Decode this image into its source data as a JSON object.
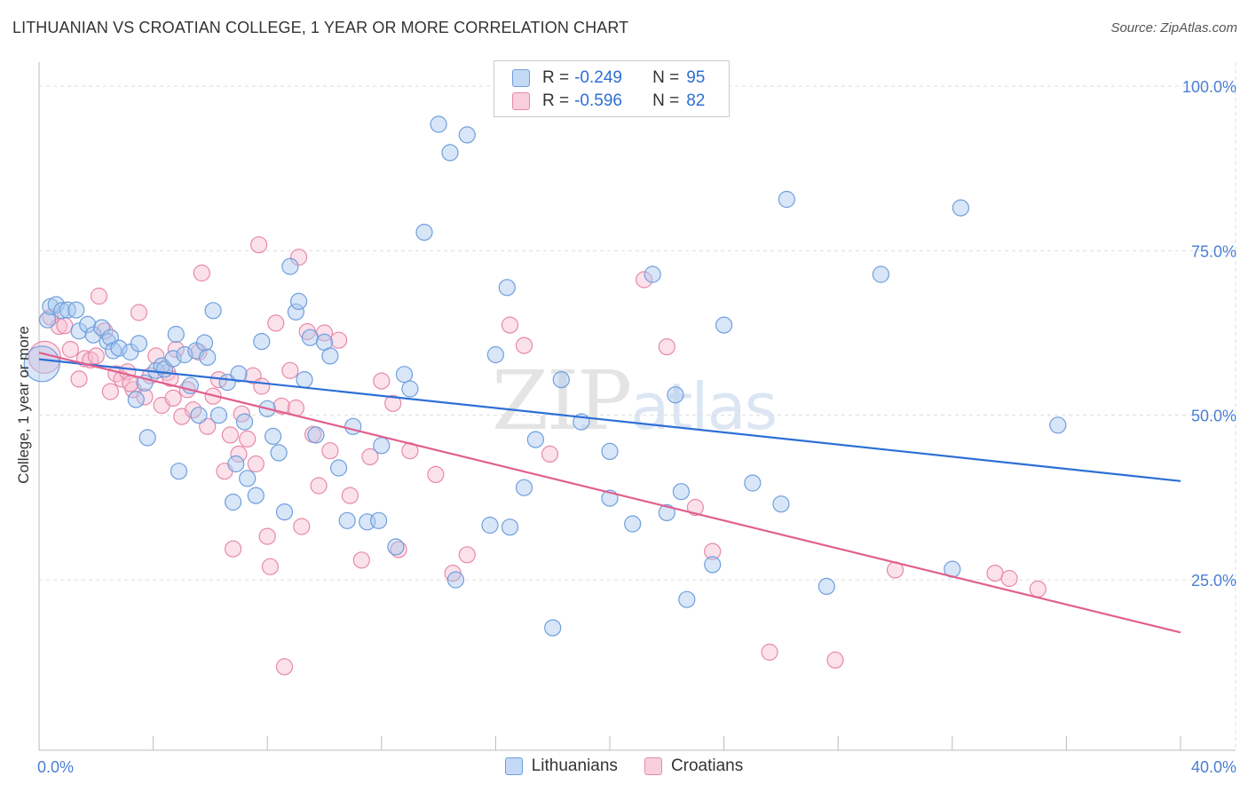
{
  "header": {
    "title": "LITHUANIAN VS CROATIAN COLLEGE, 1 YEAR OR MORE CORRELATION CHART",
    "source": "Source: ZipAtlas.com"
  },
  "watermark": {
    "zip": "ZIP",
    "atlas": "atlas"
  },
  "legend": {
    "rows": [
      {
        "r_label": "R =",
        "r_value": "-0.249",
        "n_label": "N =",
        "n_value": "95"
      },
      {
        "r_label": "R =",
        "r_value": "-0.596",
        "n_label": "N =",
        "n_value": "82"
      }
    ]
  },
  "bottom_legend": {
    "series1": "Lithuanians",
    "series2": "Croatians"
  },
  "colors": {
    "blue_fill": "#a8c8f0",
    "blue_stroke": "#6f9fdc",
    "blue_line": "#2d6fd6",
    "pink_fill": "#f6bcd0",
    "pink_stroke": "#e889aa",
    "pink_line": "#e0608e",
    "grid": "#dddddd"
  },
  "chart_data": {
    "type": "scatter",
    "title": "LITHUANIAN VS CROATIAN COLLEGE, 1 YEAR OR MORE CORRELATION CHART",
    "xlabel": "",
    "ylabel": "College, 1 year or more",
    "xlim": [
      0,
      40
    ],
    "ylim": [
      0,
      105
    ],
    "x_tick_labels": [
      {
        "value": 0,
        "label": "0.0%"
      },
      {
        "value": 40,
        "label": "40.0%"
      }
    ],
    "y_tick_labels": [
      {
        "value": 25,
        "label": "25.0%"
      },
      {
        "value": 50,
        "label": "50.0%"
      },
      {
        "value": 75,
        "label": "75.0%"
      },
      {
        "value": 100,
        "label": "100.0%"
      }
    ],
    "series": [
      {
        "name": "Lithuanians",
        "r": -0.249,
        "n": 95,
        "trend": {
          "x": [
            0,
            40
          ],
          "y": [
            58.5,
            40.0
          ]
        },
        "points": [
          [
            0.1,
            57.8
          ],
          [
            0.3,
            64.5
          ],
          [
            0.4,
            66.5
          ],
          [
            0.6,
            66.8
          ],
          [
            0.8,
            65.9
          ],
          [
            1.0,
            66.0
          ],
          [
            1.3,
            66.0
          ],
          [
            1.4,
            62.8
          ],
          [
            1.7,
            63.8
          ],
          [
            1.9,
            62.2
          ],
          [
            2.2,
            63.3
          ],
          [
            2.4,
            61.2
          ],
          [
            2.5,
            61.8
          ],
          [
            2.6,
            59.8
          ],
          [
            2.8,
            60.2
          ],
          [
            3.2,
            59.6
          ],
          [
            3.4,
            52.4
          ],
          [
            3.5,
            60.9
          ],
          [
            3.7,
            54.9
          ],
          [
            3.8,
            46.6
          ],
          [
            4.1,
            56.8
          ],
          [
            4.3,
            57.5
          ],
          [
            4.4,
            57.0
          ],
          [
            4.7,
            58.6
          ],
          [
            4.8,
            62.3
          ],
          [
            4.9,
            41.5
          ],
          [
            5.1,
            59.2
          ],
          [
            5.3,
            54.5
          ],
          [
            5.5,
            59.8
          ],
          [
            5.6,
            50.0
          ],
          [
            5.8,
            61.0
          ],
          [
            5.9,
            58.8
          ],
          [
            6.1,
            65.9
          ],
          [
            6.3,
            50.0
          ],
          [
            6.6,
            55.0
          ],
          [
            6.8,
            36.8
          ],
          [
            7.0,
            56.3
          ],
          [
            7.2,
            49.0
          ],
          [
            7.3,
            40.4
          ],
          [
            7.6,
            37.8
          ],
          [
            7.8,
            61.2
          ],
          [
            8.0,
            51.0
          ],
          [
            8.2,
            46.8
          ],
          [
            8.4,
            44.3
          ],
          [
            8.6,
            35.3
          ],
          [
            8.8,
            72.6
          ],
          [
            9.0,
            65.7
          ],
          [
            9.1,
            67.3
          ],
          [
            9.3,
            55.4
          ],
          [
            9.5,
            61.8
          ],
          [
            9.7,
            47.0
          ],
          [
            10.0,
            61.1
          ],
          [
            10.2,
            59.0
          ],
          [
            10.5,
            42.0
          ],
          [
            10.8,
            34.0
          ],
          [
            11.0,
            48.3
          ],
          [
            11.5,
            33.8
          ],
          [
            12.0,
            45.4
          ],
          [
            12.5,
            30.0
          ],
          [
            12.8,
            56.2
          ],
          [
            13.0,
            54.0
          ],
          [
            13.5,
            77.8
          ],
          [
            14.0,
            94.2
          ],
          [
            14.4,
            89.9
          ],
          [
            14.6,
            25.0
          ],
          [
            15.0,
            92.6
          ],
          [
            15.8,
            33.3
          ],
          [
            16.0,
            59.2
          ],
          [
            16.4,
            69.4
          ],
          [
            16.5,
            33.0
          ],
          [
            17.0,
            39.0
          ],
          [
            17.4,
            46.3
          ],
          [
            18.0,
            17.7
          ],
          [
            18.3,
            55.4
          ],
          [
            19.0,
            49.0
          ],
          [
            20.0,
            37.4
          ],
          [
            20.0,
            44.5
          ],
          [
            20.8,
            33.5
          ],
          [
            21.5,
            71.4
          ],
          [
            22.0,
            35.2
          ],
          [
            22.5,
            38.4
          ],
          [
            22.7,
            22.0
          ],
          [
            23.6,
            27.3
          ],
          [
            24.0,
            63.7
          ],
          [
            25.0,
            39.7
          ],
          [
            26.0,
            36.5
          ],
          [
            26.2,
            82.8
          ],
          [
            27.6,
            24.0
          ],
          [
            29.5,
            71.4
          ],
          [
            32.0,
            26.6
          ],
          [
            32.3,
            81.5
          ],
          [
            35.7,
            48.5
          ],
          [
            22.3,
            53.1
          ],
          [
            11.9,
            34.0
          ],
          [
            6.9,
            42.6
          ]
        ]
      },
      {
        "name": "Croatians",
        "r": -0.596,
        "n": 82,
        "trend": {
          "x": [
            0,
            40
          ],
          "y": [
            59.5,
            17.0
          ]
        },
        "points": [
          [
            0.2,
            58.8
          ],
          [
            0.4,
            64.9
          ],
          [
            0.7,
            63.5
          ],
          [
            0.9,
            63.6
          ],
          [
            1.1,
            60.0
          ],
          [
            1.4,
            55.5
          ],
          [
            1.6,
            58.6
          ],
          [
            1.8,
            58.4
          ],
          [
            2.1,
            68.1
          ],
          [
            2.3,
            62.8
          ],
          [
            2.5,
            53.6
          ],
          [
            2.7,
            56.3
          ],
          [
            2.9,
            55.5
          ],
          [
            3.1,
            56.6
          ],
          [
            3.3,
            53.9
          ],
          [
            3.5,
            65.6
          ],
          [
            3.7,
            52.8
          ],
          [
            3.9,
            56.0
          ],
          [
            4.1,
            59.0
          ],
          [
            4.3,
            51.5
          ],
          [
            4.5,
            56.5
          ],
          [
            4.7,
            52.6
          ],
          [
            4.8,
            60.0
          ],
          [
            5.0,
            49.8
          ],
          [
            5.2,
            53.9
          ],
          [
            5.4,
            50.8
          ],
          [
            5.6,
            59.6
          ],
          [
            5.7,
            71.6
          ],
          [
            5.9,
            48.3
          ],
          [
            6.1,
            52.9
          ],
          [
            6.3,
            55.4
          ],
          [
            6.5,
            41.5
          ],
          [
            6.7,
            47.0
          ],
          [
            6.8,
            29.7
          ],
          [
            7.0,
            44.1
          ],
          [
            7.1,
            50.2
          ],
          [
            7.3,
            46.4
          ],
          [
            7.5,
            56.0
          ],
          [
            7.6,
            42.6
          ],
          [
            7.8,
            54.4
          ],
          [
            8.0,
            31.6
          ],
          [
            8.1,
            27.0
          ],
          [
            8.3,
            64.0
          ],
          [
            8.5,
            51.4
          ],
          [
            8.6,
            11.8
          ],
          [
            8.8,
            56.8
          ],
          [
            9.0,
            51.1
          ],
          [
            9.2,
            33.1
          ],
          [
            9.4,
            62.7
          ],
          [
            9.6,
            47.1
          ],
          [
            9.8,
            39.3
          ],
          [
            10.0,
            62.5
          ],
          [
            10.2,
            44.6
          ],
          [
            10.5,
            61.4
          ],
          [
            10.9,
            37.8
          ],
          [
            11.3,
            28.0
          ],
          [
            11.6,
            43.7
          ],
          [
            12.0,
            55.2
          ],
          [
            12.4,
            51.8
          ],
          [
            12.6,
            29.6
          ],
          [
            13.0,
            44.6
          ],
          [
            13.9,
            41.0
          ],
          [
            14.5,
            26.0
          ],
          [
            15.0,
            28.8
          ],
          [
            16.5,
            63.7
          ],
          [
            17.0,
            60.6
          ],
          [
            17.9,
            44.1
          ],
          [
            21.2,
            70.6
          ],
          [
            22.0,
            60.4
          ],
          [
            23.6,
            29.3
          ],
          [
            25.6,
            14.0
          ],
          [
            27.9,
            12.8
          ],
          [
            30.0,
            26.5
          ],
          [
            33.5,
            26.0
          ],
          [
            34.0,
            25.2
          ],
          [
            35.0,
            23.6
          ],
          [
            2.0,
            59.0
          ],
          [
            7.7,
            75.9
          ],
          [
            3.2,
            54.8
          ],
          [
            4.6,
            55.6
          ],
          [
            23.0,
            36.0
          ],
          [
            9.1,
            74.0
          ]
        ]
      }
    ]
  }
}
